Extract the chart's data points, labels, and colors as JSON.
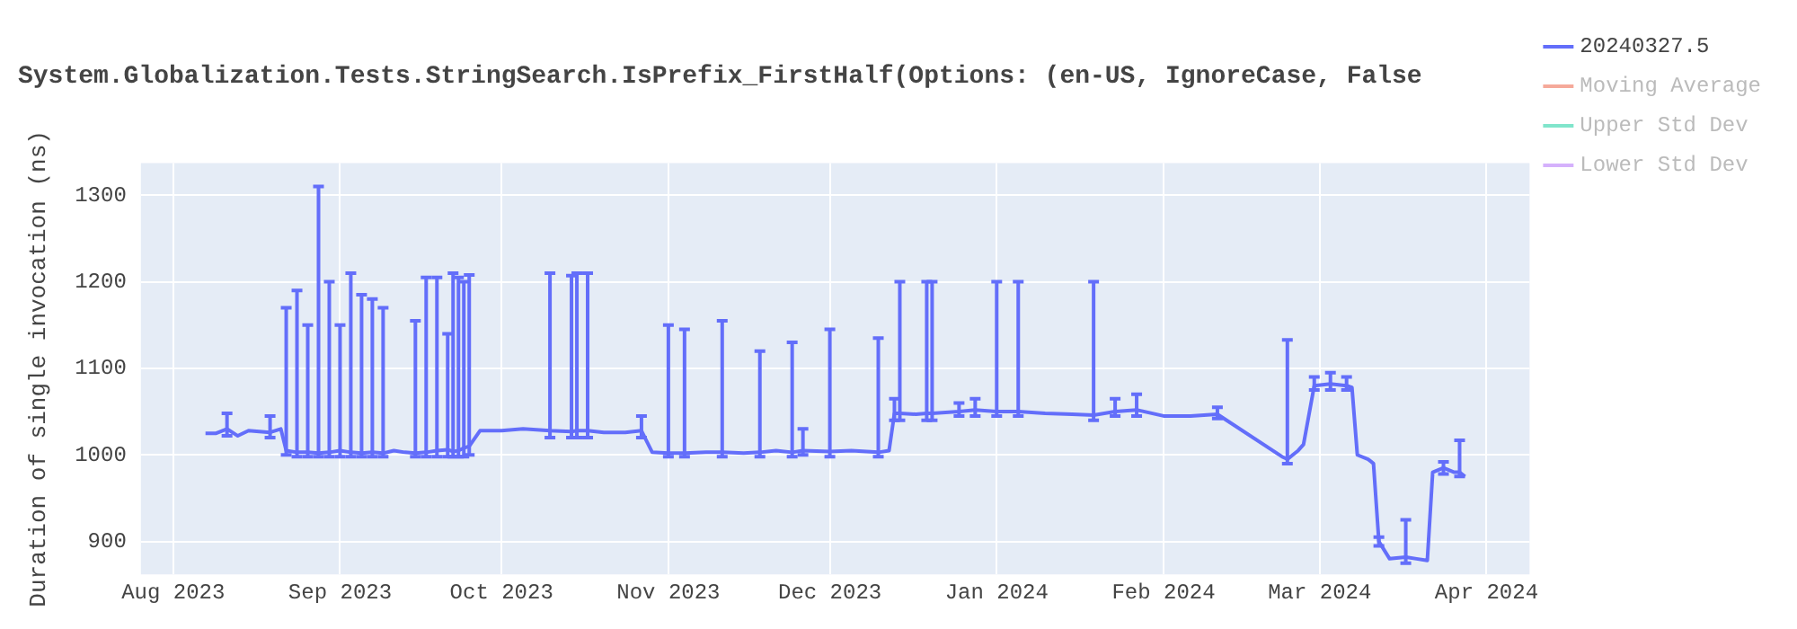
{
  "chart_data": {
    "type": "line",
    "title": "System.Globalization.Tests.StringSearch.IsPrefix_FirstHalf(Options: (en-US, IgnoreCase, False",
    "ylabel": "Duration of single invocation (ns)",
    "x": [
      "2023-08-07",
      "2023-08-09",
      "2023-08-11",
      "2023-08-13",
      "2023-08-15",
      "2023-08-17",
      "2023-08-19",
      "2023-08-21",
      "2023-08-22",
      "2023-08-24",
      "2023-08-26",
      "2023-08-28",
      "2023-08-30",
      "2023-09-01",
      "2023-09-03",
      "2023-09-05",
      "2023-09-07",
      "2023-09-09",
      "2023-09-11",
      "2023-09-13",
      "2023-09-15",
      "2023-09-17",
      "2023-09-19",
      "2023-09-21",
      "2023-09-22",
      "2023-09-23",
      "2023-09-24",
      "2023-09-25",
      "2023-09-27",
      "2023-10-01",
      "2023-10-05",
      "2023-10-10",
      "2023-10-14",
      "2023-10-15",
      "2023-10-17",
      "2023-10-20",
      "2023-10-24",
      "2023-10-27",
      "2023-10-29",
      "2023-11-01",
      "2023-11-04",
      "2023-11-08",
      "2023-11-11",
      "2023-11-15",
      "2023-11-18",
      "2023-11-21",
      "2023-11-24",
      "2023-11-26",
      "2023-12-01",
      "2023-12-05",
      "2023-12-10",
      "2023-12-12",
      "2023-12-13",
      "2023-12-14",
      "2023-12-17",
      "2023-12-19",
      "2023-12-20",
      "2023-12-25",
      "2023-12-28",
      "2024-01-01",
      "2024-01-05",
      "2024-01-10",
      "2024-01-15",
      "2024-01-19",
      "2024-01-23",
      "2024-01-27",
      "2024-02-01",
      "2024-02-06",
      "2024-02-11",
      "2024-02-23",
      "2024-02-24",
      "2024-02-26",
      "2024-02-27",
      "2024-02-29",
      "2024-03-03",
      "2024-03-06",
      "2024-03-07",
      "2024-03-08",
      "2024-03-10",
      "2024-03-11",
      "2024-03-12",
      "2024-03-14",
      "2024-03-17",
      "2024-03-19",
      "2024-03-21",
      "2024-03-22",
      "2024-03-24",
      "2024-03-26",
      "2024-03-27",
      "2024-03-28"
    ],
    "series": [
      {
        "name": "20240327.5",
        "color": "#636efa",
        "values": [
          1025,
          1025,
          1030,
          1022,
          1028,
          1027,
          1026,
          1030,
          1005,
          1003,
          1003,
          1002,
          1003,
          1005,
          1003,
          1002,
          1003,
          1002,
          1005,
          1003,
          1002,
          1003,
          1005,
          1006,
          1004,
          1005,
          1008,
          1010,
          1028,
          1028,
          1030,
          1028,
          1027,
          1028,
          1028,
          1026,
          1026,
          1028,
          1003,
          1002,
          1002,
          1003,
          1003,
          1002,
          1003,
          1005,
          1003,
          1005,
          1004,
          1005,
          1003,
          1005,
          1048,
          1048,
          1047,
          1048,
          1048,
          1050,
          1052,
          1050,
          1050,
          1048,
          1047,
          1046,
          1050,
          1052,
          1045,
          1045,
          1047,
          998,
          995,
          1005,
          1012,
          1080,
          1082,
          1080,
          1078,
          1000,
          995,
          990,
          900,
          880,
          882,
          880,
          878,
          980,
          985,
          980,
          980,
          975
        ],
        "errors": [
          null,
          null,
          [
            1022,
            1048
          ],
          null,
          null,
          null,
          [
            1020,
            1045
          ],
          null,
          [
            1000,
            1170
          ],
          [
            998,
            1190
          ],
          [
            998,
            1150
          ],
          [
            998,
            1310
          ],
          [
            998,
            1200
          ],
          [
            998,
            1150
          ],
          [
            998,
            1210
          ],
          [
            998,
            1185
          ],
          [
            998,
            1180
          ],
          [
            998,
            1170
          ],
          null,
          null,
          [
            998,
            1155
          ],
          [
            998,
            1205
          ],
          [
            998,
            1205
          ],
          [
            998,
            1140
          ],
          [
            998,
            1210
          ],
          [
            998,
            1205
          ],
          [
            998,
            1200
          ],
          [
            1000,
            1208
          ],
          null,
          null,
          null,
          [
            1020,
            1210
          ],
          [
            1020,
            1207
          ],
          [
            1020,
            1210
          ],
          [
            1020,
            1210
          ],
          null,
          null,
          [
            1020,
            1045
          ],
          null,
          [
            998,
            1150
          ],
          [
            998,
            1145
          ],
          null,
          [
            998,
            1155
          ],
          null,
          [
            998,
            1120
          ],
          null,
          [
            998,
            1130
          ],
          [
            1000,
            1030
          ],
          [
            998,
            1145
          ],
          null,
          [
            998,
            1135
          ],
          null,
          [
            1040,
            1065
          ],
          [
            1040,
            1200
          ],
          null,
          [
            1040,
            1200
          ],
          [
            1040,
            1200
          ],
          [
            1045,
            1060
          ],
          [
            1045,
            1065
          ],
          [
            1045,
            1200
          ],
          [
            1045,
            1200
          ],
          null,
          null,
          [
            1040,
            1200
          ],
          [
            1045,
            1065
          ],
          [
            1045,
            1070
          ],
          null,
          null,
          [
            1042,
            1055
          ],
          null,
          [
            990,
            1133
          ],
          null,
          null,
          [
            1075,
            1090
          ],
          [
            1075,
            1095
          ],
          [
            1075,
            1090
          ],
          null,
          null,
          null,
          null,
          [
            895,
            905
          ],
          null,
          [
            875,
            925
          ],
          null,
          null,
          null,
          [
            978,
            992
          ],
          null,
          [
            975,
            1017
          ],
          null
        ]
      },
      {
        "name": "Moving Average",
        "color": "#f5a99a",
        "values": [
          null,
          null,
          null,
          null,
          null,
          null,
          null,
          null,
          null,
          null,
          null,
          null,
          null,
          null,
          null,
          null,
          null,
          null,
          null,
          null,
          null,
          null,
          null,
          null,
          null,
          null,
          null,
          null,
          null,
          null,
          null,
          null,
          null,
          null,
          null,
          null,
          null,
          null,
          null,
          null,
          null,
          null,
          null,
          null,
          null,
          null,
          null,
          null,
          null,
          null,
          null,
          null,
          null,
          null,
          null,
          null,
          null,
          null,
          null,
          null,
          null,
          null,
          null,
          null,
          null,
          null,
          null,
          null,
          null,
          null,
          null,
          null,
          null,
          null,
          null,
          null,
          null,
          null,
          null,
          null,
          null,
          null,
          null,
          null,
          null,
          null,
          null,
          null,
          null,
          null
        ]
      },
      {
        "name": "Upper Std Dev",
        "color": "#80e5cb",
        "values": [
          null,
          null,
          null,
          null,
          null,
          null,
          null,
          null,
          null,
          null,
          null,
          null,
          null,
          null,
          null,
          null,
          null,
          null,
          null,
          null,
          null,
          null,
          null,
          null,
          null,
          null,
          null,
          null,
          null,
          null,
          null,
          null,
          null,
          null,
          null,
          null,
          null,
          null,
          null,
          null,
          null,
          null,
          null,
          null,
          null,
          null,
          null,
          null,
          null,
          null,
          null,
          null,
          null,
          null,
          null,
          null,
          null,
          null,
          null,
          null,
          null,
          null,
          null,
          null,
          null,
          null,
          null,
          null,
          null,
          null,
          null,
          null,
          null,
          null,
          null,
          null,
          null,
          null,
          null,
          null,
          null,
          null,
          null,
          null,
          null,
          null,
          null,
          null,
          null,
          null
        ]
      },
      {
        "name": "Lower Std Dev",
        "color": "#d5b1fc",
        "values": [
          null,
          null,
          null,
          null,
          null,
          null,
          null,
          null,
          null,
          null,
          null,
          null,
          null,
          null,
          null,
          null,
          null,
          null,
          null,
          null,
          null,
          null,
          null,
          null,
          null,
          null,
          null,
          null,
          null,
          null,
          null,
          null,
          null,
          null,
          null,
          null,
          null,
          null,
          null,
          null,
          null,
          null,
          null,
          null,
          null,
          null,
          null,
          null,
          null,
          null,
          null,
          null,
          null,
          null,
          null,
          null,
          null,
          null,
          null,
          null,
          null,
          null,
          null,
          null,
          null,
          null,
          null,
          null,
          null,
          null,
          null,
          null,
          null,
          null,
          null,
          null,
          null,
          null,
          null,
          null,
          null,
          null,
          null,
          null,
          null,
          null,
          null,
          null,
          null,
          null
        ]
      }
    ],
    "xlim": [
      "2023-07-26",
      "2024-04-09"
    ],
    "xticks": [
      {
        "value": "2023-08-01",
        "label": "Aug 2023"
      },
      {
        "value": "2023-09-01",
        "label": "Sep 2023"
      },
      {
        "value": "2023-10-01",
        "label": "Oct 2023"
      },
      {
        "value": "2023-11-01",
        "label": "Nov 2023"
      },
      {
        "value": "2023-12-01",
        "label": "Dec 2023"
      },
      {
        "value": "2024-01-01",
        "label": "Jan 2024"
      },
      {
        "value": "2024-02-01",
        "label": "Feb 2024"
      },
      {
        "value": "2024-03-01",
        "label": "Mar 2024"
      },
      {
        "value": "2024-04-01",
        "label": "Apr 2024"
      }
    ],
    "ylim": [
      862,
      1337
    ],
    "yticks": [
      900,
      1000,
      1100,
      1200,
      1300
    ],
    "grid": true,
    "legend": "right",
    "marker": "none",
    "line_style": "solid"
  }
}
